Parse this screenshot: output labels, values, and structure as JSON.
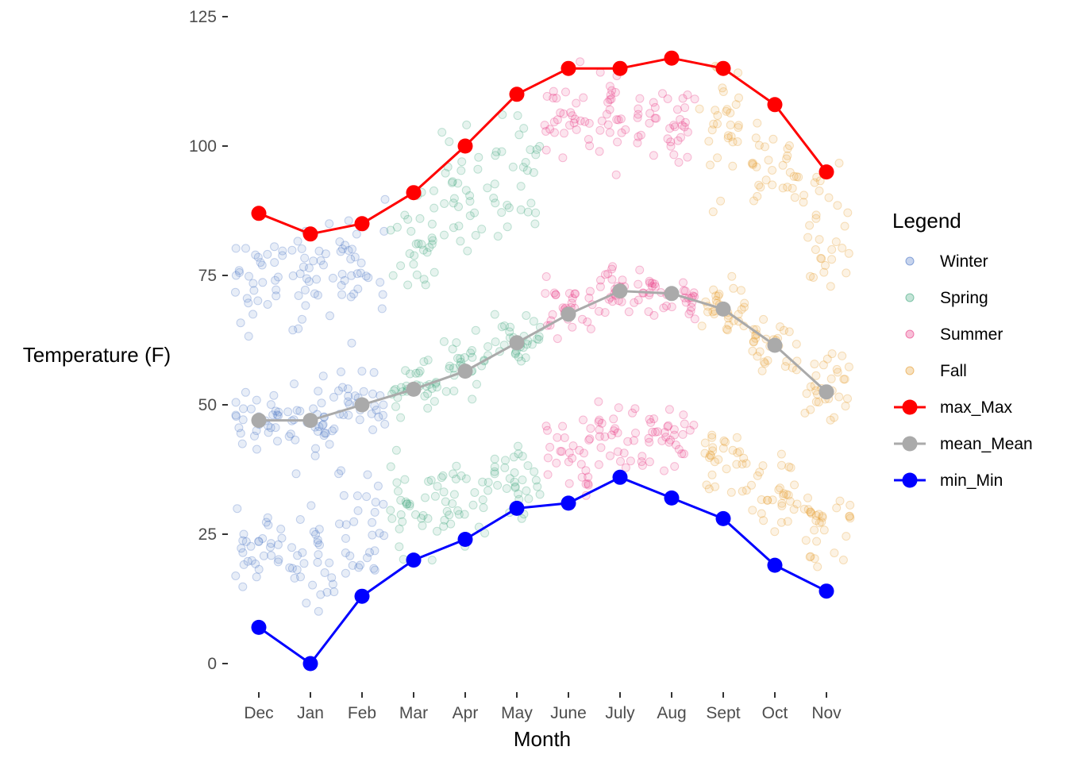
{
  "chart_data": {
    "type": "line",
    "xlabel": "Month",
    "ylabel": "Temperature (F)",
    "ylim": [
      -6,
      128
    ],
    "yticks": [
      0,
      25,
      50,
      75,
      100,
      125
    ],
    "categories": [
      "Dec",
      "Jan",
      "Feb",
      "Mar",
      "Apr",
      "May",
      "June",
      "July",
      "Aug",
      "Sept",
      "Oct",
      "Nov"
    ],
    "grid": false,
    "legend": {
      "title": "Legend",
      "position": "right",
      "entries": [
        {
          "label": "Winter",
          "kind": "point",
          "color": "#4472c4"
        },
        {
          "label": "Spring",
          "kind": "point",
          "color": "#3ba57a"
        },
        {
          "label": "Summer",
          "kind": "point",
          "color": "#e8307f"
        },
        {
          "label": "Fall",
          "kind": "point",
          "color": "#e69a2a"
        },
        {
          "label": "max_Max",
          "kind": "line",
          "color": "#ff0000"
        },
        {
          "label": "mean_Mean",
          "kind": "line",
          "color": "#aaaaaa"
        },
        {
          "label": "min_Min",
          "kind": "line",
          "color": "#0000ff"
        }
      ]
    },
    "series": [
      {
        "name": "max_Max",
        "color": "#ff0000",
        "values": [
          87,
          83,
          85,
          91,
          100,
          110,
          115,
          115,
          117,
          115,
          108,
          95
        ]
      },
      {
        "name": "mean_Mean",
        "color": "#aaaaaa",
        "values": [
          47,
          47,
          50,
          53,
          56.5,
          62,
          67.5,
          72,
          71.5,
          68.5,
          61.5,
          52.5
        ]
      },
      {
        "name": "min_Min",
        "color": "#0000ff",
        "values": [
          7,
          0,
          13,
          20,
          24,
          30,
          31,
          36,
          32,
          28,
          19,
          14
        ]
      }
    ],
    "daily_scatter": {
      "season_by_month": [
        "Winter",
        "Winter",
        "Winter",
        "Spring",
        "Spring",
        "Spring",
        "Summer",
        "Summer",
        "Summer",
        "Fall",
        "Fall",
        "Fall"
      ],
      "season_colors": {
        "Winter": "#4472c4",
        "Spring": "#3ba57a",
        "Summer": "#e8307f",
        "Fall": "#e69a2a"
      },
      "bands": [
        {
          "name": "max",
          "center": [
            73,
            74,
            76,
            82,
            90,
            96,
            104,
            106,
            105,
            103,
            96,
            84
          ],
          "spread": [
            6,
            7,
            6,
            6,
            6,
            6,
            5,
            4,
            4,
            6,
            5,
            6
          ]
        },
        {
          "name": "mean",
          "center": [
            47,
            47,
            50,
            53,
            57,
            62,
            68,
            72,
            71,
            69,
            61,
            53
          ],
          "spread": [
            3,
            3,
            3,
            3,
            3,
            3,
            2.5,
            2.5,
            2.5,
            2.5,
            3,
            3
          ]
        },
        {
          "name": "min",
          "center": [
            22,
            22,
            26,
            30,
            32,
            36,
            40,
            43,
            43,
            40,
            33,
            26
          ],
          "spread": [
            4,
            5,
            5,
            4,
            4,
            4,
            4,
            3.5,
            3.5,
            4,
            4,
            4
          ]
        }
      ],
      "points_per_month": 30
    }
  }
}
